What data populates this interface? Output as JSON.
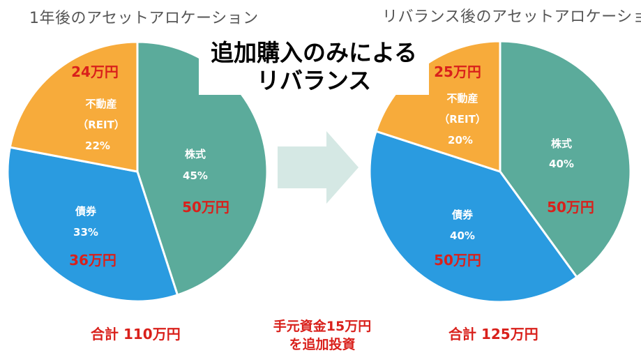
{
  "chart_data": [
    {
      "type": "pie",
      "title": "1年後のアセットアロケーション",
      "total_label": "合計 110万円",
      "slices": [
        {
          "name": "株式",
          "percent_label": "45%",
          "value": 45,
          "amount": "50万円",
          "color": "#5bab9b"
        },
        {
          "name": "債券",
          "percent_label": "33%",
          "value": 33,
          "amount": "36万円",
          "color": "#2a9be0"
        },
        {
          "name": "不動産",
          "sub": "（REIT）",
          "percent_label": "22%",
          "value": 22,
          "amount": "24万円",
          "color": "#f7ab3b"
        }
      ]
    },
    {
      "type": "pie",
      "title": "リバランス後のアセットアロケーション",
      "total_label": "合計 125万円",
      "slices": [
        {
          "name": "株式",
          "percent_label": "40%",
          "value": 40,
          "amount": "50万円",
          "color": "#5bab9b"
        },
        {
          "name": "債券",
          "percent_label": "40%",
          "value": 40,
          "amount": "50万円",
          "color": "#2a9be0"
        },
        {
          "name": "不動産",
          "sub": "（REIT）",
          "percent_label": "20%",
          "value": 20,
          "amount": "25万円",
          "color": "#f7ab3b"
        }
      ]
    }
  ],
  "headline": {
    "line1": "追加購入のみによる",
    "line2": "リバランス"
  },
  "note": {
    "line1": "手元資金15万円",
    "line2": "を追加投資"
  },
  "colors": {
    "accent_red": "#d9201b",
    "arrow": "#d5e8e4"
  }
}
